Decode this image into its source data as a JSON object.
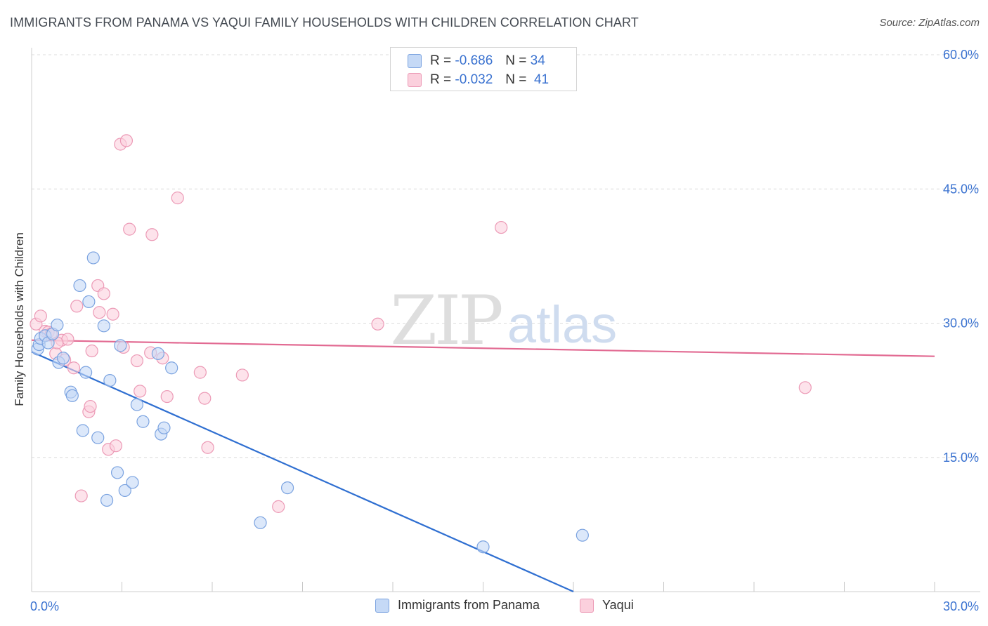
{
  "title": "IMMIGRANTS FROM PANAMA VS YAQUI FAMILY HOUSEHOLDS WITH CHILDREN CORRELATION CHART",
  "source": "Source: ZipAtlas.com",
  "watermark": {
    "zip": "ZIP",
    "atlas": "atlas"
  },
  "legend": {
    "r_label": "R =",
    "n_label": "N =",
    "series": [
      {
        "name": "Immigrants from Panama",
        "r": "-0.686",
        "n": "34"
      },
      {
        "name": "Yaqui",
        "r": "-0.032",
        "n": "41"
      }
    ]
  },
  "colors": {
    "blue_fill": "#c5d9f6",
    "blue_stroke": "#7ba3e0",
    "blue_line": "#2f6fd1",
    "pink_fill": "#fbd0dd",
    "pink_stroke": "#ec9ab6",
    "pink_line": "#e26a92",
    "tick_text": "#3a72d0"
  },
  "chart_data": {
    "type": "scatter",
    "title": "IMMIGRANTS FROM PANAMA VS YAQUI FAMILY HOUSEHOLDS WITH CHILDREN CORRELATION CHART",
    "xlabel": "",
    "ylabel": "Family Households with Children",
    "xlim": [
      0,
      30
    ],
    "ylim": [
      0,
      60
    ],
    "x_tick_labels": [
      "0.0%",
      "30.0%"
    ],
    "y_ticks": [
      15,
      30,
      45,
      60
    ],
    "y_tick_labels": [
      "15.0%",
      "30.0%",
      "45.0%",
      "60.0%"
    ],
    "series": [
      {
        "name": "Immigrants from Panama",
        "color": "blue",
        "points": [
          [
            0.2,
            27.1
          ],
          [
            0.25,
            27.6
          ],
          [
            0.3,
            28.3
          ],
          [
            0.45,
            28.6
          ],
          [
            0.55,
            27.8
          ],
          [
            0.7,
            28.8
          ],
          [
            0.85,
            29.8
          ],
          [
            0.9,
            25.6
          ],
          [
            1.05,
            26.1
          ],
          [
            1.3,
            22.3
          ],
          [
            1.35,
            21.9
          ],
          [
            1.6,
            34.2
          ],
          [
            1.7,
            18.0
          ],
          [
            1.8,
            24.5
          ],
          [
            1.9,
            32.4
          ],
          [
            2.05,
            37.3
          ],
          [
            2.2,
            17.2
          ],
          [
            2.4,
            29.7
          ],
          [
            2.5,
            10.2
          ],
          [
            2.6,
            23.6
          ],
          [
            2.85,
            13.3
          ],
          [
            2.95,
            27.5
          ],
          [
            3.1,
            11.3
          ],
          [
            3.35,
            12.2
          ],
          [
            3.5,
            20.9
          ],
          [
            3.7,
            19.0
          ],
          [
            4.2,
            26.6
          ],
          [
            4.3,
            17.6
          ],
          [
            4.4,
            18.3
          ],
          [
            4.65,
            25.0
          ],
          [
            7.6,
            7.7
          ],
          [
            8.5,
            11.6
          ],
          [
            15.0,
            5.0
          ],
          [
            18.3,
            6.3
          ]
        ],
        "trend": {
          "x": [
            0,
            18.0
          ],
          "y": [
            26.8,
            0
          ]
        }
      },
      {
        "name": "Yaqui",
        "color": "pink",
        "points": [
          [
            0.15,
            29.9
          ],
          [
            0.3,
            30.8
          ],
          [
            0.45,
            29.1
          ],
          [
            0.55,
            29.0
          ],
          [
            0.65,
            28.8
          ],
          [
            0.8,
            26.6
          ],
          [
            1.0,
            28.1
          ],
          [
            1.1,
            25.9
          ],
          [
            1.2,
            28.2
          ],
          [
            1.4,
            25.0
          ],
          [
            1.5,
            31.9
          ],
          [
            1.65,
            10.7
          ],
          [
            1.9,
            20.1
          ],
          [
            1.95,
            20.7
          ],
          [
            2.0,
            26.9
          ],
          [
            2.2,
            34.2
          ],
          [
            2.25,
            31.2
          ],
          [
            2.4,
            33.3
          ],
          [
            2.55,
            15.9
          ],
          [
            2.7,
            31.0
          ],
          [
            2.8,
            16.3
          ],
          [
            2.95,
            50.0
          ],
          [
            3.05,
            27.3
          ],
          [
            3.15,
            50.4
          ],
          [
            3.25,
            40.5
          ],
          [
            3.5,
            25.8
          ],
          [
            3.6,
            22.4
          ],
          [
            3.95,
            26.7
          ],
          [
            4.0,
            39.9
          ],
          [
            4.35,
            26.1
          ],
          [
            4.5,
            21.8
          ],
          [
            4.85,
            44.0
          ],
          [
            5.6,
            24.5
          ],
          [
            5.75,
            21.6
          ],
          [
            5.85,
            16.1
          ],
          [
            7.0,
            24.2
          ],
          [
            8.2,
            9.5
          ],
          [
            11.5,
            29.9
          ],
          [
            15.6,
            40.7
          ],
          [
            25.7,
            22.8
          ],
          [
            0.85,
            27.8
          ]
        ],
        "trend": {
          "x": [
            0,
            30
          ],
          "y": [
            28.1,
            26.3
          ]
        }
      }
    ]
  }
}
